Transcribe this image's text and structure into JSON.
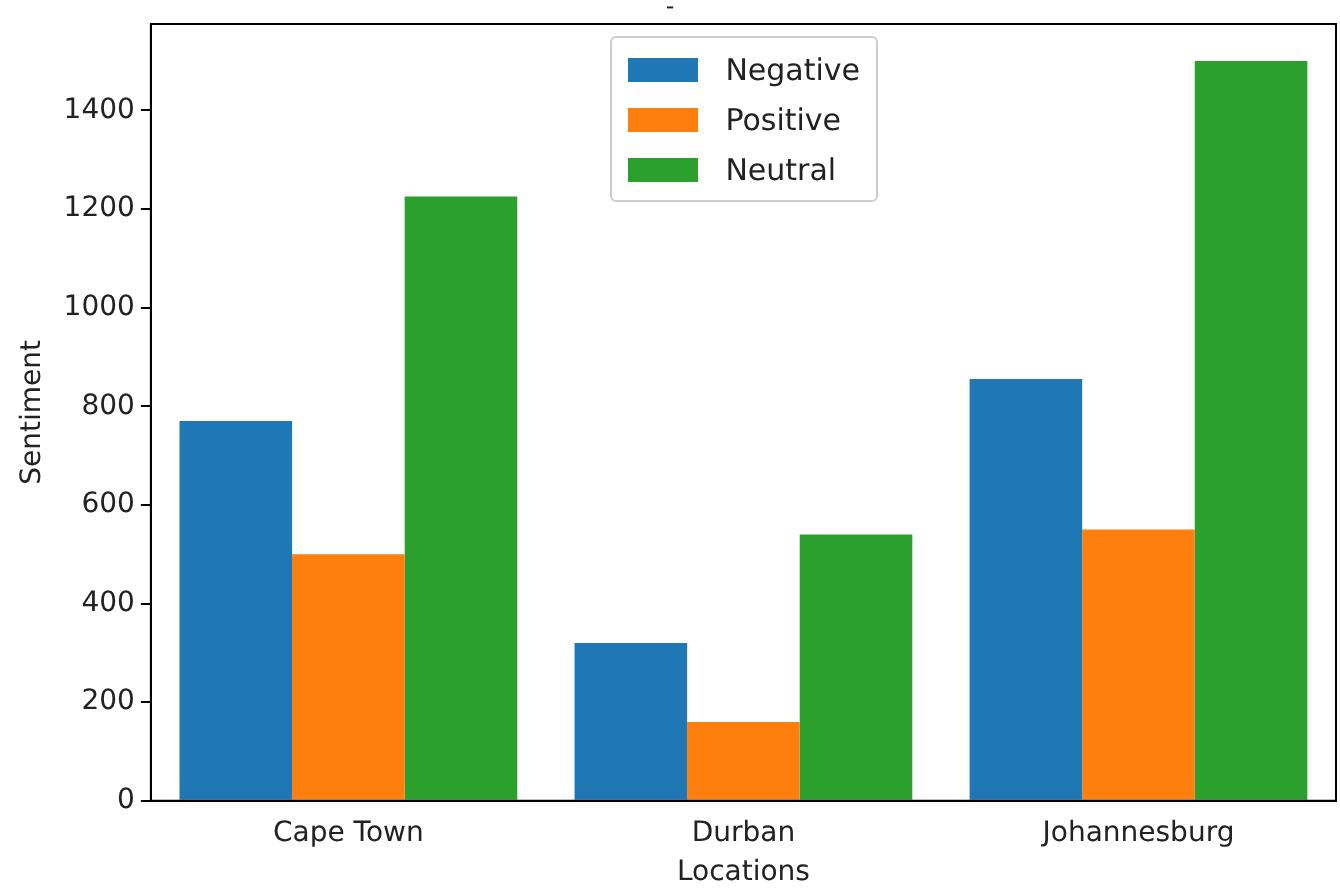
{
  "chart_data": {
    "type": "bar",
    "title": "-",
    "xlabel": "Locations",
    "ylabel": "Sentiment",
    "categories": [
      "Cape Town",
      "Durban",
      "Johannesburg"
    ],
    "series": [
      {
        "name": "Negative",
        "color": "#1f77b4",
        "values": [
          770,
          320,
          855
        ]
      },
      {
        "name": "Positive",
        "color": "#ff7f0e",
        "values": [
          500,
          160,
          550
        ]
      },
      {
        "name": "Neutral",
        "color": "#2ca02c",
        "values": [
          1225,
          540,
          1500
        ]
      }
    ],
    "ylim": [
      0,
      1575
    ],
    "yticks": [
      0,
      200,
      400,
      600,
      800,
      1000,
      1200,
      1400
    ],
    "grid": false,
    "legend": "top"
  }
}
